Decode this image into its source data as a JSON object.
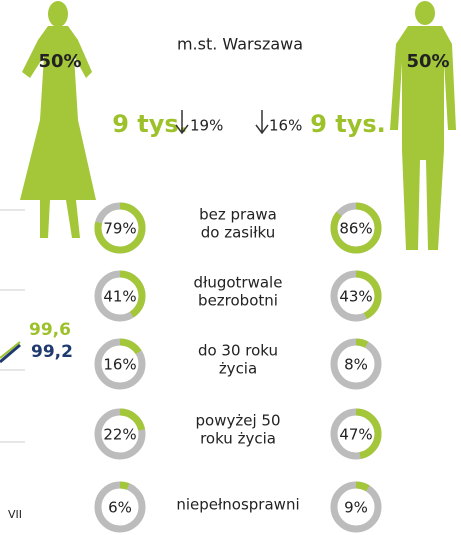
{
  "region": "m.st. Warszawa",
  "women": {
    "share": "50%",
    "count": "9 tys.",
    "change": "19%"
  },
  "men": {
    "share": "50%",
    "count": "9 tys.",
    "change": "16%"
  },
  "rows": [
    {
      "label": [
        "bez prawa",
        "do zasiłku"
      ],
      "women": 79,
      "women_label": "79%",
      "men": 86,
      "men_label": "86%"
    },
    {
      "label": [
        "długotrwale",
        "bezrobotni"
      ],
      "women": 41,
      "women_label": "41%",
      "men": 43,
      "men_label": "43%"
    },
    {
      "label": [
        "do 30 roku",
        "życia"
      ],
      "women": 16,
      "women_label": "16%",
      "men": 8,
      "men_label": "8%"
    },
    {
      "label": [
        "powyżej 50",
        "roku życia"
      ],
      "women": 22,
      "women_label": "22%",
      "men": 47,
      "men_label": "47%"
    },
    {
      "label": [
        "niepełnosprawni"
      ],
      "women": 6,
      "women_label": "6%",
      "men": 9,
      "men_label": "9%"
    }
  ],
  "side_chart": {
    "value_a": "99,6",
    "value_b": "99,2",
    "month": "VII"
  }
}
